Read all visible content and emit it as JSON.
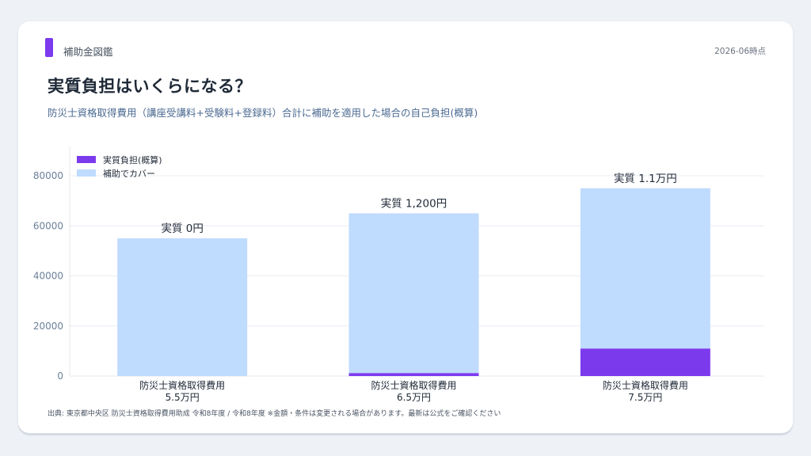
{
  "header": {
    "brand": "補助金図鑑",
    "date": "2026-06時点",
    "title": "実質負担はいくらになる？",
    "subtitle": "防災士資格取得費用（講座受講料+受験料+登録料）合計に補助を適用した場合の自己負担(概算)"
  },
  "footer": {
    "source": "出典: 東京都中央区 防災士資格取得費用助成 令和8年度 / 令和8年度 ※金額・条件は変更される場合があります。最新は公式をご確認ください"
  },
  "colors": {
    "accent": "#7c3aed",
    "burden": "#7c3aed",
    "covered": "#bfdbfe"
  },
  "chart_data": {
    "type": "bar",
    "stacked": true,
    "categories": [
      [
        "防災士資格取得費用",
        "5.5万円"
      ],
      [
        "防災士資格取得費用",
        "6.5万円"
      ],
      [
        "防災士資格取得費用",
        "7.5万円"
      ]
    ],
    "series": [
      {
        "name": "実質負担(概算)",
        "values": [
          0,
          1200,
          11000
        ]
      },
      {
        "name": "補助でカバー",
        "values": [
          55000,
          63800,
          64000
        ]
      }
    ],
    "data_labels": [
      "実質 0円",
      "実質 1,200円",
      "実質 1.1万円"
    ],
    "yticks": [
      0,
      20000,
      40000,
      60000,
      80000
    ],
    "ylim": [
      0,
      80000
    ],
    "grid": true,
    "legend": "top-left"
  }
}
